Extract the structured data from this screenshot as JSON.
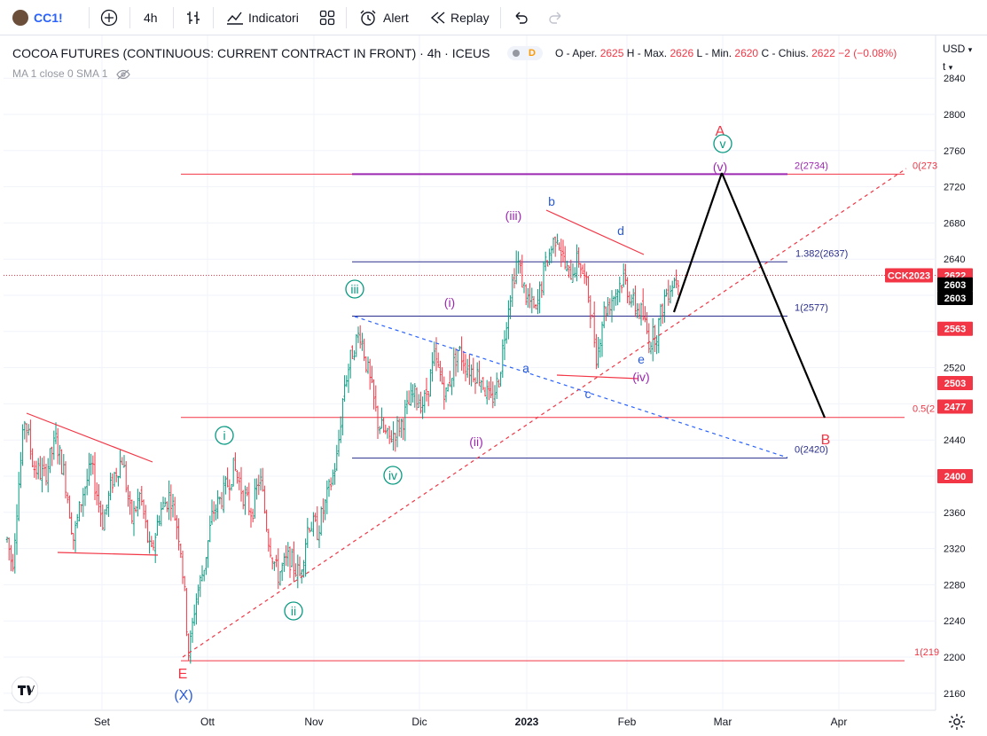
{
  "toolbar": {
    "symbol": "CC1!",
    "interval": "4h",
    "indicators_label": "Indicatori",
    "alert_label": "Alert",
    "replay_label": "Replay",
    "icons": [
      "plus-circle-icon",
      "bars-style-icon",
      "indicators-icon",
      "templates-icon",
      "alert-icon",
      "replay-icon",
      "undo-icon",
      "redo-icon"
    ]
  },
  "legend": {
    "title": "COCOA FUTURES (CONTINUOUS: CURRENT CONTRACT IN FRONT) · 4h · ICEUS",
    "badge": "D",
    "ohlc": {
      "o_label": "O - Aper.",
      "o": "2625",
      "h_label": "H - Max.",
      "h": "2626",
      "l_label": "L - Min.",
      "l": "2620",
      "c_label": "C - Chius.",
      "c": "2622",
      "change": "−2 (−0.08%)"
    },
    "indicator": "MA 1 close 0 SMA 1"
  },
  "currency": "USD",
  "currency_sub": "t",
  "chart_data": {
    "type": "candlestick",
    "title": "COCOA FUTURES (CONTINUOUS: CURRENT CONTRACT IN FRONT) · 4h · ICEUS",
    "x_ticks": [
      "Set",
      "Ott",
      "Nov",
      "Dic",
      "2023",
      "Feb",
      "Mar",
      "Apr"
    ],
    "y_ticks": [
      2160,
      2200,
      2240,
      2280,
      2320,
      2360,
      2400,
      2440,
      2480,
      2520,
      2560,
      2600,
      2640,
      2680,
      2720,
      2760,
      2800,
      2840
    ],
    "ylim": [
      2140,
      2850
    ],
    "price_path": [
      [
        0,
        2330
      ],
      [
        6,
        2300
      ],
      [
        12,
        2380
      ],
      [
        20,
        2465
      ],
      [
        30,
        2410
      ],
      [
        42,
        2400
      ],
      [
        55,
        2440
      ],
      [
        65,
        2400
      ],
      [
        75,
        2330
      ],
      [
        85,
        2380
      ],
      [
        95,
        2410
      ],
      [
        108,
        2350
      ],
      [
        120,
        2400
      ],
      [
        130,
        2420
      ],
      [
        140,
        2350
      ],
      [
        150,
        2380
      ],
      [
        162,
        2310
      ],
      [
        172,
        2360
      ],
      [
        184,
        2380
      ],
      [
        195,
        2330
      ],
      [
        200,
        2270
      ],
      [
        205,
        2200
      ],
      [
        212,
        2260
      ],
      [
        222,
        2300
      ],
      [
        232,
        2360
      ],
      [
        244,
        2380
      ],
      [
        256,
        2410
      ],
      [
        266,
        2380
      ],
      [
        276,
        2360
      ],
      [
        285,
        2400
      ],
      [
        295,
        2330
      ],
      [
        305,
        2290
      ],
      [
        318,
        2310
      ],
      [
        330,
        2290
      ],
      [
        340,
        2350
      ],
      [
        350,
        2340
      ],
      [
        362,
        2380
      ],
      [
        372,
        2420
      ],
      [
        380,
        2500
      ],
      [
        390,
        2540
      ],
      [
        398,
        2560
      ],
      [
        408,
        2510
      ],
      [
        418,
        2460
      ],
      [
        430,
        2440
      ],
      [
        445,
        2460
      ],
      [
        458,
        2490
      ],
      [
        470,
        2480
      ],
      [
        482,
        2530
      ],
      [
        495,
        2490
      ],
      [
        508,
        2540
      ],
      [
        520,
        2520
      ],
      [
        534,
        2510
      ],
      [
        545,
        2480
      ],
      [
        555,
        2510
      ],
      [
        565,
        2590
      ],
      [
        575,
        2640
      ],
      [
        585,
        2600
      ],
      [
        596,
        2580
      ],
      [
        606,
        2630
      ],
      [
        620,
        2670
      ],
      [
        632,
        2620
      ],
      [
        645,
        2640
      ],
      [
        656,
        2600
      ],
      [
        665,
        2530
      ],
      [
        672,
        2580
      ],
      [
        684,
        2600
      ],
      [
        695,
        2620
      ],
      [
        706,
        2590
      ],
      [
        716,
        2580
      ],
      [
        724,
        2550
      ],
      [
        733,
        2560
      ],
      [
        742,
        2600
      ],
      [
        750,
        2615
      ],
      [
        758,
        2622
      ]
    ],
    "horizontal_levels": [
      {
        "label": "0(273",
        "price": 2734,
        "color": "#f23645"
      },
      {
        "label": "2(2734)",
        "price": 2734,
        "color": "#9c27b0"
      },
      {
        "label": "1.382(2637)",
        "price": 2637,
        "color": "#2a2e8c"
      },
      {
        "label": "1(2577)",
        "price": 2577,
        "color": "#2a2e8c"
      },
      {
        "label": "0(2420)",
        "price": 2420,
        "color": "#2a2e8c"
      },
      {
        "label": "0.5(2",
        "price": 2465,
        "color": "#f23645"
      },
      {
        "label": "1(219",
        "price": 2196,
        "color": "#f23645"
      }
    ],
    "price_labels": [
      {
        "text": "CCK2023",
        "bg": "#f23645",
        "fg": "#ffffff"
      },
      {
        "text": "2622",
        "bg": "#f23645",
        "fg": "#ffffff",
        "price": 2622
      },
      {
        "text": "2603",
        "bg": "#000000",
        "fg": "#ffffff",
        "price": 2612
      },
      {
        "text": "2603",
        "bg": "#000000",
        "fg": "#ffffff",
        "price": 2597
      },
      {
        "text": "2563",
        "bg": "#f23645",
        "fg": "#ffffff",
        "price": 2563
      },
      {
        "text": "2503",
        "bg": "#f23645",
        "fg": "#ffffff",
        "price": 2503
      },
      {
        "text": "2477",
        "bg": "#f23645",
        "fg": "#ffffff",
        "price": 2477
      },
      {
        "text": "2400",
        "bg": "#f23645",
        "fg": "#ffffff",
        "price": 2400
      }
    ],
    "wave_labels": [
      {
        "text": "A",
        "color": "#f23645"
      },
      {
        "text": "v",
        "color": "#089981",
        "circled": true
      },
      {
        "text": "(v)",
        "color": "#9c27b0"
      },
      {
        "text": "b",
        "color": "#2a5bd7"
      },
      {
        "text": "d",
        "color": "#2a5bd7"
      },
      {
        "text": "(iii)",
        "color": "#9c27b0"
      },
      {
        "text": "iii",
        "color": "#089981",
        "circled": true
      },
      {
        "text": "(i)",
        "color": "#9c27b0"
      },
      {
        "text": "a",
        "color": "#2a5bd7"
      },
      {
        "text": "c",
        "color": "#2a5bd7"
      },
      {
        "text": "e",
        "color": "#2a5bd7"
      },
      {
        "text": "(iv)",
        "color": "#9c27b0"
      },
      {
        "text": "i",
        "color": "#089981",
        "circled": true
      },
      {
        "text": "(ii)",
        "color": "#9c27b0"
      },
      {
        "text": "iv",
        "color": "#089981",
        "circled": true
      },
      {
        "text": "ii",
        "color": "#089981",
        "circled": true
      },
      {
        "text": "B",
        "color": "#f23645"
      },
      {
        "text": "E",
        "color": "#f23645"
      },
      {
        "text": "(X)",
        "color": "#2a5bd7"
      }
    ],
    "grid": true
  }
}
